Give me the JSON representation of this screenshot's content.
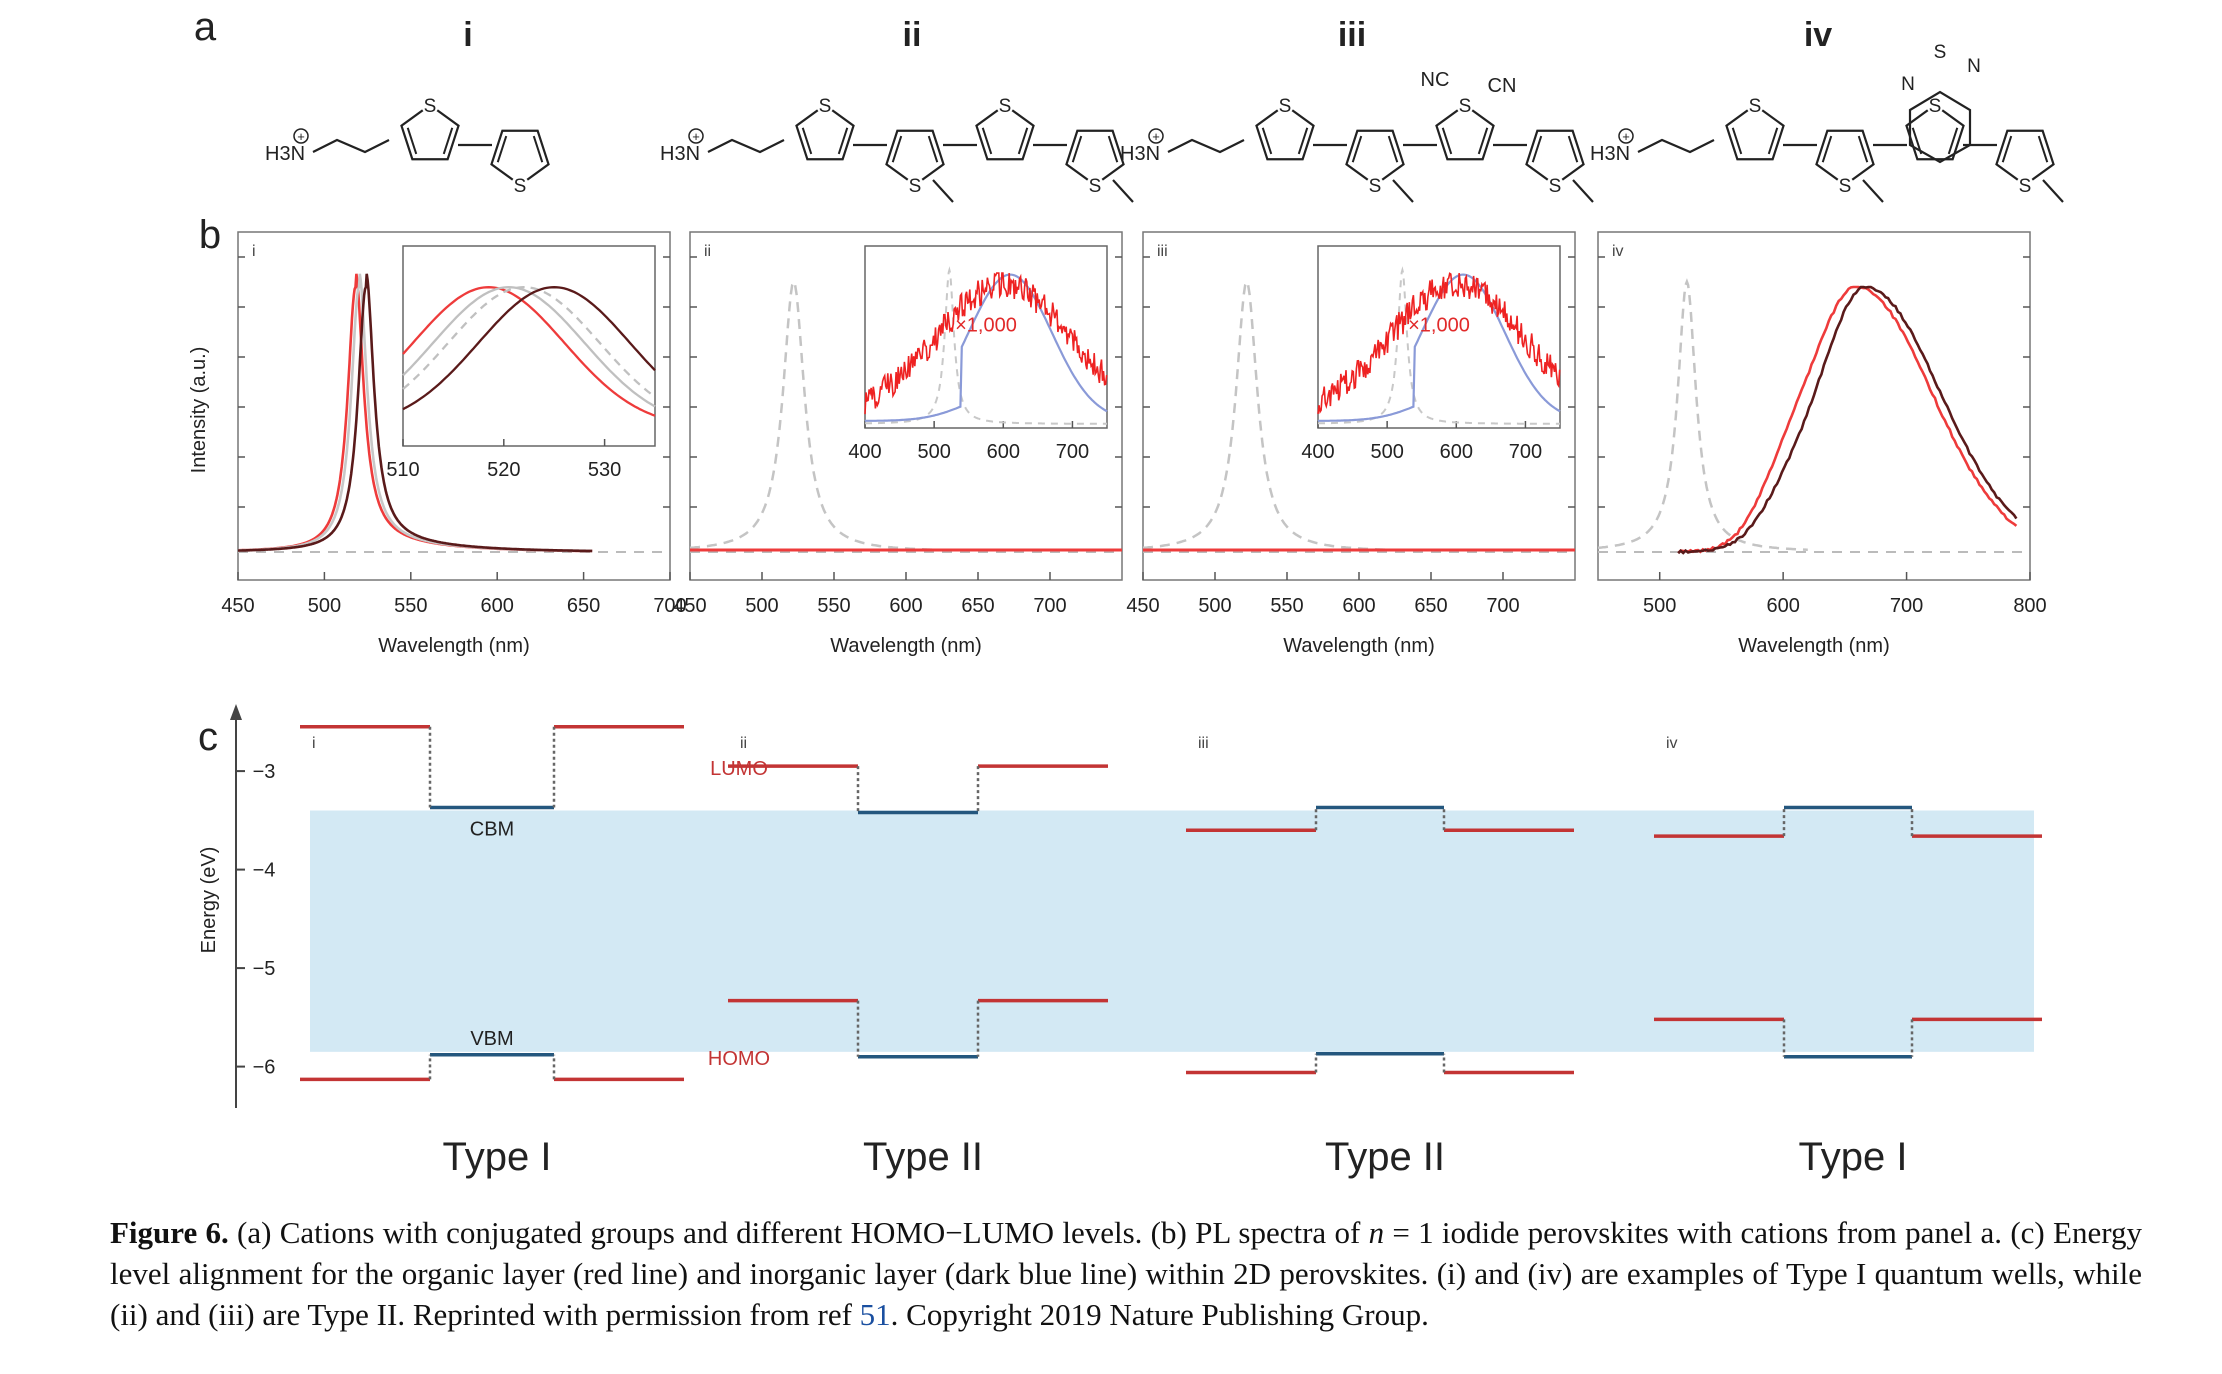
{
  "panel_a": {
    "label": "a",
    "cations": [
      {
        "numeral": "i",
        "structure": "H3N+-CH2CH2-bithiophene",
        "atom_labels": [
          "S",
          "S"
        ]
      },
      {
        "numeral": "ii",
        "structure": "H3N+-ethyl-quaterthiophene with methyl groups",
        "atom_labels": [
          "S",
          "S",
          "S",
          "S"
        ]
      },
      {
        "numeral": "iii",
        "structure": "H3N+-ethyl-oligothiophene with dicyano thiophene",
        "atom_labels": [
          "S",
          "S",
          "S",
          "S"
        ],
        "substituents": [
          "NC",
          "CN"
        ]
      },
      {
        "numeral": "iv",
        "structure": "H3N+-ethyl-bithiophene-benzothiadiazole-methylthiophene",
        "atom_labels": [
          "S",
          "S",
          "S",
          "S",
          "N",
          "N"
        ]
      }
    ],
    "ammonium_text": "H3N"
  },
  "chart_data": [
    {
      "type": "line",
      "panel": "b-i",
      "label": "b",
      "sublabel": "i",
      "xlabel": "Wavelength (nm)",
      "ylabel": "Intensity (a.u.)",
      "xlim": [
        450,
        700
      ],
      "xticks": [
        450,
        500,
        550,
        600,
        650,
        700
      ],
      "series": [
        {
          "color": "#ee3b3b",
          "peak": 518,
          "width": 8
        },
        {
          "color": "#c8c8c8",
          "peak": 520,
          "width": 8
        },
        {
          "color": "#5a1a1a",
          "peak": 524,
          "width": 8
        }
      ],
      "inset": {
        "xlim": [
          510,
          535
        ],
        "xticks": [
          510,
          520,
          530
        ],
        "series": [
          {
            "color": "#ee3b3b",
            "peak": 518.5
          },
          {
            "color": "#c0c0c0",
            "peak": 520.5
          },
          {
            "color": "#c0c0c0",
            "peak": 522,
            "dashed": true
          },
          {
            "color": "#5a1a1a",
            "peak": 525
          }
        ]
      }
    },
    {
      "type": "line",
      "panel": "b-ii",
      "sublabel": "ii",
      "xlabel": "Wavelength (nm)",
      "xlim": [
        450,
        750
      ],
      "xticks": [
        450,
        500,
        550,
        600,
        650,
        700
      ],
      "reference_peak": 522,
      "inset": {
        "xlim": [
          400,
          750
        ],
        "xticks": [
          400,
          500,
          600,
          700
        ],
        "annotation": "×1,000",
        "peak": 600
      }
    },
    {
      "type": "line",
      "panel": "b-iii",
      "sublabel": "iii",
      "xlabel": "Wavelength (nm)",
      "xlim": [
        450,
        750
      ],
      "xticks": [
        450,
        500,
        550,
        600,
        650,
        700
      ],
      "reference_peak": 522,
      "inset": {
        "xlim": [
          400,
          750
        ],
        "xticks": [
          400,
          500,
          600,
          700
        ],
        "annotation": "×1,000",
        "peak": 600
      }
    },
    {
      "type": "line",
      "panel": "b-iv",
      "sublabel": "iv",
      "xlabel": "Wavelength (nm)",
      "xlim": [
        450,
        800
      ],
      "xticks": [
        500,
        600,
        700,
        800
      ],
      "reference_peak": 522,
      "series": [
        {
          "color": "#ee3b3b",
          "peak": 660
        },
        {
          "color": "#5a1a1a",
          "peak": 667
        }
      ]
    },
    {
      "type": "energy_diagram",
      "panel": "c",
      "label": "c",
      "ylabel": "Energy (eV)",
      "ylim": [
        -6.4,
        -2.4
      ],
      "yticks": [
        -3,
        -4,
        -5,
        -6
      ],
      "ytick_labels": [
        "−3",
        "−4",
        "−5",
        "−6"
      ],
      "band": {
        "cbm": -3.4,
        "vbm": -5.85,
        "color": "#d3e9f4"
      },
      "labels": {
        "lumo": "LUMO",
        "homo": "HOMO",
        "cbm": "CBM",
        "vbm": "VBM"
      },
      "groups": [
        {
          "sublabel": "i",
          "type_label": "Type I",
          "organic_lumo": -2.55,
          "organic_homo": -6.13,
          "inorganic_cbm": -3.37,
          "inorganic_vbm": -5.88
        },
        {
          "sublabel": "ii",
          "type_label": "Type II",
          "organic_lumo": -2.95,
          "organic_homo": -5.33,
          "inorganic_cbm": -3.42,
          "inorganic_vbm": -5.9
        },
        {
          "sublabel": "iii",
          "type_label": "Type II",
          "organic_lumo": -3.6,
          "organic_homo": -6.06,
          "inorganic_cbm": -3.37,
          "inorganic_vbm": -5.87
        },
        {
          "sublabel": "iv",
          "type_label": "Type I",
          "organic_lumo": -3.66,
          "organic_homo": -5.52,
          "inorganic_cbm": -3.37,
          "inorganic_vbm": -5.9
        }
      ]
    }
  ],
  "caption": {
    "figure_label": "Figure 6.",
    "part1": " (a) Cations with conjugated groups and different HOMO−LUMO levels. (b) PL spectra of ",
    "n_symbol": "n",
    "part2": " = 1 iodide perovskites with cations from panel a. (c) Energy level alignment for the organic layer (red line) and inorganic layer (dark blue line) within 2D perovskites. (i) and (iv) are examples of Type I quantum wells, while (ii) and (iii) are Type II. Reprinted with permission from ref ",
    "ref_number": "51",
    "part3": ". Copyright 2019 Nature Publishing Group."
  }
}
